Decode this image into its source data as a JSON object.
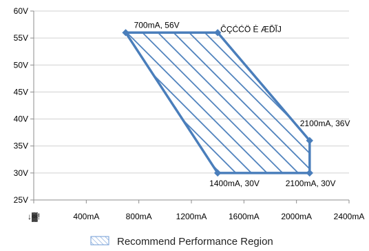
{
  "chart_data": {
    "type": "area",
    "xlim": [
      0,
      2400
    ],
    "ylim": [
      25,
      60
    ],
    "x_tick_labels": [
      "↓▓!",
      "400mA",
      "800mA",
      "1200mA",
      "1600mA",
      "2000mA",
      "2400mA"
    ],
    "x_ticks": [
      0,
      400,
      800,
      1200,
      1600,
      2000,
      2400
    ],
    "y_tick_labels": [
      "25V",
      "30V",
      "35V",
      "40V",
      "45V",
      "50V",
      "55V",
      "60V"
    ],
    "y_ticks": [
      25,
      30,
      35,
      40,
      45,
      50,
      55,
      60
    ],
    "grid": "horizontal",
    "series": [
      {
        "name": "Recommend Performance Region",
        "fill": "hatched",
        "color": "#4a7ebb",
        "points": [
          {
            "x": 700,
            "y": 56
          },
          {
            "x": 1400,
            "y": 56
          },
          {
            "x": 2100,
            "y": 36
          },
          {
            "x": 2100,
            "y": 30
          },
          {
            "x": 1400,
            "y": 30
          }
        ]
      }
    ],
    "annotations": [
      {
        "text": "700mA, 56V",
        "x": 700,
        "y": 56
      },
      {
        "text": "ĈÇĆĆÖ Ė ÆĎĨJ",
        "x": 1400,
        "y": 56
      },
      {
        "text": "2100mA, 36V",
        "x": 2100,
        "y": 36
      },
      {
        "text": "1400mA, 30V",
        "x": 1400,
        "y": 30
      },
      {
        "text": "2100mA, 30V",
        "x": 2100,
        "y": 30
      }
    ],
    "legend": {
      "position": "bottom",
      "label": "Recommend Performance Region"
    }
  }
}
